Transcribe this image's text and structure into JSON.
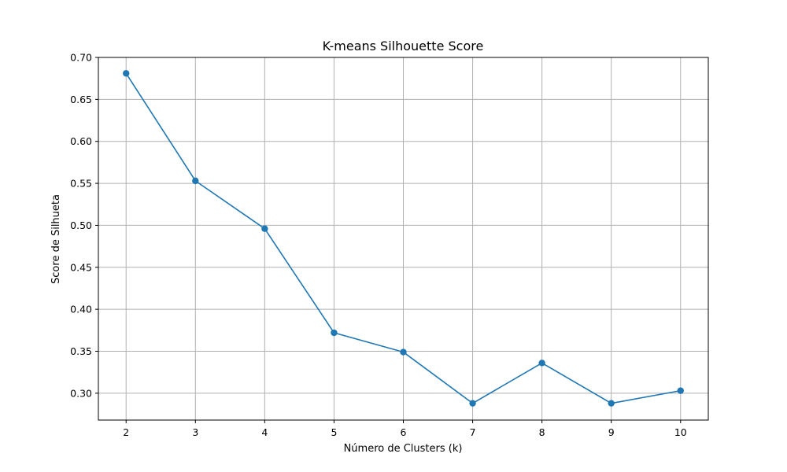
{
  "chart_data": {
    "type": "line",
    "title": "K-means Silhouette Score",
    "xlabel": "Número de Clusters (k)",
    "ylabel": "Score de Silhueta",
    "x": [
      2,
      3,
      4,
      5,
      6,
      7,
      8,
      9,
      10
    ],
    "series": [
      {
        "values": [
          0.681,
          0.553,
          0.496,
          0.372,
          0.349,
          0.288,
          0.336,
          0.288,
          0.303
        ]
      }
    ],
    "xlim": [
      1.6,
      10.4
    ],
    "ylim": [
      0.268,
      0.7
    ],
    "xticks": [
      2,
      3,
      4,
      5,
      6,
      7,
      8,
      9,
      10
    ],
    "yticks": [
      "0.30",
      "0.35",
      "0.40",
      "0.45",
      "0.50",
      "0.55",
      "0.60",
      "0.65",
      "0.70"
    ],
    "grid": true,
    "marker": "circle",
    "colors": {
      "line": "#1f77b4",
      "grid": "#b0b0b0",
      "axes": "#000000"
    }
  }
}
